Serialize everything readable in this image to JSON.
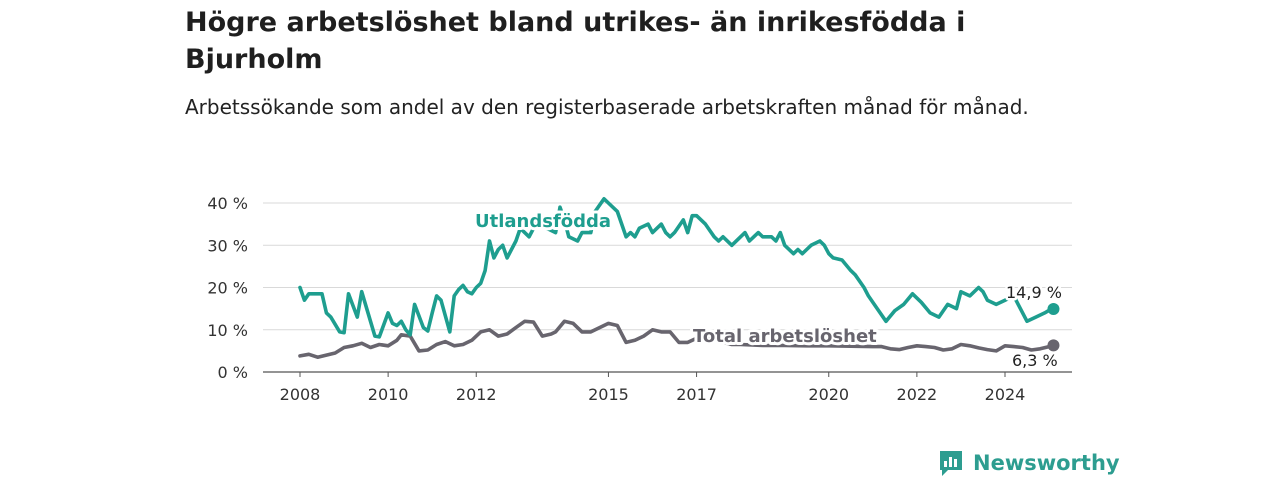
{
  "title": "Högre arbetslöshet bland utrikes- än inrikesfödda i Bjurholm",
  "subtitle": "Arbetssökande som andel av den registerbaserade arbetskraften månad för månad.",
  "brand": "Newsworthy",
  "chart_data": {
    "type": "line",
    "title": "Högre arbetslöshet bland utrikes- än inrikesfödda i Bjurholm",
    "subtitle": "Arbetssökande som andel av den registerbaserade arbetskraften månad för månad.",
    "xlabel": "",
    "ylabel": "",
    "xlim": [
      2008,
      2025.2
    ],
    "ylim": [
      0,
      40
    ],
    "y_ticks": [
      {
        "value": 0,
        "label": "0 %"
      },
      {
        "value": 10,
        "label": "10 %"
      },
      {
        "value": 20,
        "label": "20 %"
      },
      {
        "value": 30,
        "label": "30 %"
      },
      {
        "value": 40,
        "label": "40 %"
      }
    ],
    "x_ticks": [
      {
        "value": 2008,
        "label": "2008"
      },
      {
        "value": 2010,
        "label": "2010"
      },
      {
        "value": 2012,
        "label": "2012"
      },
      {
        "value": 2015,
        "label": "2015"
      },
      {
        "value": 2017,
        "label": "2017"
      },
      {
        "value": 2020,
        "label": "2020"
      },
      {
        "value": 2022,
        "label": "2022"
      },
      {
        "value": 2024,
        "label": "2024"
      }
    ],
    "grid": true,
    "legend": "inline labels",
    "series": [
      {
        "name": "Utlandsfödda",
        "color": "#1e9e8f",
        "end_label": "14,9 %",
        "x": [
          2008.0,
          2008.1,
          2008.2,
          2008.5,
          2008.6,
          2008.7,
          2008.9,
          2009.0,
          2009.1,
          2009.3,
          2009.4,
          2009.6,
          2009.7,
          2009.8,
          2010.0,
          2010.1,
          2010.2,
          2010.3,
          2010.4,
          2010.5,
          2010.6,
          2010.8,
          2010.9,
          2011.0,
          2011.1,
          2011.2,
          2011.4,
          2011.5,
          2011.6,
          2011.7,
          2011.8,
          2011.9,
          2012.0,
          2012.1,
          2012.2,
          2012.3,
          2012.4,
          2012.5,
          2012.6,
          2012.7,
          2012.9,
          2013.0,
          2013.2,
          2013.4,
          2013.6,
          2013.8,
          2013.9,
          2014.0,
          2014.1,
          2014.3,
          2014.4,
          2014.6,
          2014.7,
          2014.9,
          2015.0,
          2015.2,
          2015.4,
          2015.5,
          2015.6,
          2015.7,
          2015.9,
          2016.0,
          2016.2,
          2016.3,
          2016.4,
          2016.5,
          2016.7,
          2016.8,
          2016.9,
          2017.0,
          2017.2,
          2017.4,
          2017.5,
          2017.6,
          2017.8,
          2018.0,
          2018.1,
          2018.2,
          2018.3,
          2018.4,
          2018.5,
          2018.7,
          2018.8,
          2018.9,
          2019.0,
          2019.2,
          2019.3,
          2019.4,
          2019.5,
          2019.6,
          2019.8,
          2019.9,
          2020.0,
          2020.1,
          2020.3,
          2020.5,
          2020.6,
          2020.8,
          2020.9,
          2021.1,
          2021.3,
          2021.5,
          2021.7,
          2021.9,
          2022.1,
          2022.3,
          2022.5,
          2022.7,
          2022.9,
          2023.0,
          2023.2,
          2023.4,
          2023.5,
          2023.6,
          2023.8,
          2024.0,
          2024.2,
          2024.3,
          2024.5,
          2024.7,
          2024.9,
          2025.0,
          2025.1
        ],
        "values": [
          20,
          17,
          18.5,
          18.5,
          14,
          13,
          9.5,
          9.3,
          18.5,
          13,
          19,
          12,
          8.5,
          8.3,
          14,
          11.5,
          11,
          12,
          10,
          8.8,
          16,
          10.5,
          9.7,
          14,
          18,
          17,
          9.5,
          18,
          19.5,
          20.5,
          19,
          18.5,
          20,
          21,
          24,
          31,
          27,
          29,
          30,
          27,
          31,
          34,
          32,
          36,
          34,
          33,
          39,
          36,
          32,
          31,
          33,
          33,
          38,
          41,
          40,
          38,
          32,
          33,
          32,
          34,
          35,
          33,
          35,
          33,
          32,
          33,
          36,
          33,
          37,
          37,
          35,
          32,
          31,
          32,
          30,
          32,
          33,
          31,
          32,
          33,
          32,
          32,
          31,
          33,
          30,
          28,
          29,
          28,
          29,
          30,
          31,
          30,
          28,
          27,
          26.5,
          24,
          23,
          20,
          18,
          15,
          12,
          14.5,
          16,
          18.5,
          16.5,
          14,
          13,
          16,
          15,
          19,
          18,
          20,
          19,
          17,
          16,
          17,
          18,
          16,
          12,
          13,
          14,
          14.6,
          14.9
        ]
      },
      {
        "name": "Total arbetslöshet",
        "color": "#68656e",
        "end_label": "6,3 %",
        "x": [
          2008.0,
          2008.2,
          2008.4,
          2008.6,
          2008.8,
          2009.0,
          2009.2,
          2009.4,
          2009.6,
          2009.8,
          2010.0,
          2010.2,
          2010.3,
          2010.5,
          2010.7,
          2010.9,
          2011.1,
          2011.3,
          2011.5,
          2011.7,
          2011.9,
          2012.1,
          2012.3,
          2012.5,
          2012.7,
          2012.9,
          2013.1,
          2013.3,
          2013.5,
          2013.7,
          2013.8,
          2014.0,
          2014.2,
          2014.4,
          2014.6,
          2014.8,
          2015.0,
          2015.2,
          2015.4,
          2015.6,
          2015.8,
          2016.0,
          2016.2,
          2016.4,
          2016.6,
          2016.8,
          2017.0,
          2017.2,
          2017.4,
          2017.6,
          2017.8,
          2018.0,
          2018.5,
          2019.0,
          2019.5,
          2020.0,
          2020.5,
          2021.0,
          2021.2,
          2021.4,
          2021.6,
          2021.8,
          2022.0,
          2022.2,
          2022.4,
          2022.6,
          2022.8,
          2023.0,
          2023.2,
          2023.4,
          2023.6,
          2023.8,
          2024.0,
          2024.2,
          2024.4,
          2024.6,
          2024.8,
          2025.0,
          2025.1
        ],
        "values": [
          3.8,
          4.2,
          3.5,
          4,
          4.5,
          5.8,
          6.2,
          6.8,
          5.8,
          6.5,
          6.2,
          7.5,
          8.8,
          8.5,
          5,
          5.2,
          6.5,
          7.2,
          6.2,
          6.5,
          7.5,
          9.5,
          10,
          8.5,
          9,
          10.5,
          12,
          11.8,
          8.5,
          9,
          9.5,
          12,
          11.5,
          9.5,
          9.5,
          10.5,
          11.5,
          11,
          7,
          7.5,
          8.5,
          10,
          9.5,
          9.5,
          7,
          7,
          8,
          8.5,
          7.5,
          7,
          6.5,
          6.5,
          6.3,
          6.3,
          6.2,
          6.2,
          6.1,
          6,
          6,
          5.5,
          5.3,
          5.8,
          6.2,
          6,
          5.8,
          5.2,
          5.5,
          6.5,
          6.2,
          5.7,
          5.3,
          5,
          6.2,
          6,
          5.8,
          5.2,
          5.5,
          6,
          6.3
        ]
      }
    ]
  }
}
